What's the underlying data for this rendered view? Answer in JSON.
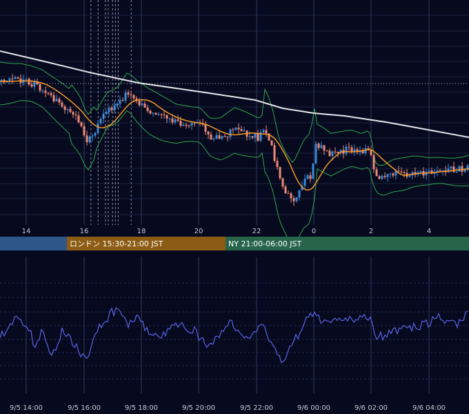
{
  "colors": {
    "background": "#070a1e",
    "grid": "#1b2140",
    "vline": "#2f3a60",
    "candle_up": "#3a8ad8",
    "candle_down": "#f08a78",
    "ma_short": "#f59a2a",
    "ma_long": "#e6e6ec",
    "bollinger": "#2ea84f",
    "rsi": "#5a63e8",
    "session_tokyo": "#2e5688",
    "session_london": "#8d5c14",
    "session_ny": "#27644a",
    "dotted_level": "#b9bccb"
  },
  "sessions": [
    {
      "id": "tokyo",
      "label": ""
    },
    {
      "id": "london",
      "label": "ロンドン 15:30-21:00 JST"
    },
    {
      "id": "ny",
      "label": "NY 21:00-06:00 JST"
    }
  ],
  "chart_data": [
    {
      "type": "candlestick",
      "title": "",
      "x_start_hour": 12.8,
      "x_end_hour": 30.8,
      "x_ticks": [
        "14",
        "16",
        "18",
        "20",
        "22",
        "0",
        "2",
        "4"
      ],
      "x_tick_hours": [
        14,
        16,
        18,
        20,
        22,
        24,
        26,
        28
      ],
      "grid": true,
      "indicators": [
        "short moving average",
        "long moving average",
        "bollinger bands"
      ],
      "event_lines_hours": [
        16.25,
        16.5,
        16.75,
        16.85,
        17.0,
        17.1,
        17.2,
        17.65
      ]
    },
    {
      "type": "line",
      "title": "",
      "series": [
        {
          "name": ""
        }
      ],
      "x_ticks": [
        "9/5 14:00",
        "9/5 16:00",
        "9/5 18:00",
        "9/5 20:00",
        "9/5 22:00",
        "9/6 00:00",
        "9/6 02:00",
        "9/6 04:00"
      ],
      "grid": true
    }
  ]
}
